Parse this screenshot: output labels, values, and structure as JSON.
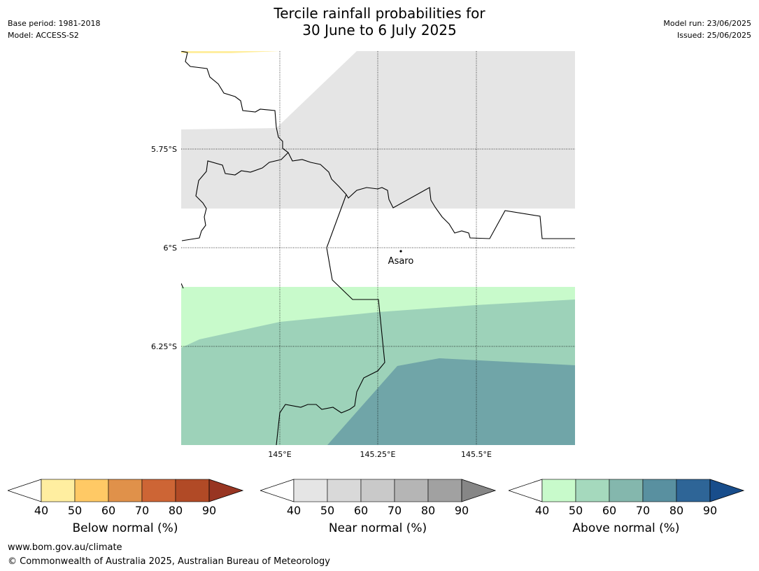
{
  "header": {
    "title_line1": "Tercile rainfall probabilities for",
    "title_line2": "30 June to 6 July 2025",
    "base_period": "Base period: 1981-2018",
    "model": "Model: ACCESS-S2",
    "model_run": "Model run: 23/06/2025",
    "issued": "Issued: 25/06/2025"
  },
  "map": {
    "lat_labels": [
      "5.75°S",
      "6°S",
      "6.25°S"
    ],
    "lon_labels": [
      "145°E",
      "145.25°E",
      "145.5°E"
    ],
    "place": {
      "name": "Asaro",
      "lon": 145.29,
      "lat": -6.01
    },
    "colors": {
      "near_normal_40": "#e5e5e5",
      "above_normal_40": "#c8facb",
      "above_normal_50": "#9dd2b9",
      "above_normal_60": "#70a5a8",
      "below_normal_40": "#ffeea0"
    }
  },
  "colorbars": [
    {
      "name": "Below normal (%)",
      "ticks": [
        "40",
        "50",
        "60",
        "70",
        "80",
        "90"
      ],
      "colors": [
        "#ffeea0",
        "#ffc965",
        "#e0914a",
        "#cd6535",
        "#b14a26",
        "#983522"
      ]
    },
    {
      "name": "Near normal (%)",
      "ticks": [
        "40",
        "50",
        "60",
        "70",
        "80",
        "90"
      ],
      "colors": [
        "#e5e5e5",
        "#d9d9d9",
        "#c9c9c9",
        "#b5b5b5",
        "#a1a1a1",
        "#868686"
      ]
    },
    {
      "name": "Above normal (%)",
      "ticks": [
        "40",
        "50",
        "60",
        "70",
        "80",
        "90"
      ],
      "colors": [
        "#c8facb",
        "#a5d9bd",
        "#84b7ad",
        "#5990a0",
        "#2e6597",
        "#184d8b"
      ]
    }
  ],
  "footer": {
    "url": "www.bom.gov.au/climate",
    "copyright": "© Commonwealth of Australia 2025, Australian Bureau of Meteorology"
  }
}
